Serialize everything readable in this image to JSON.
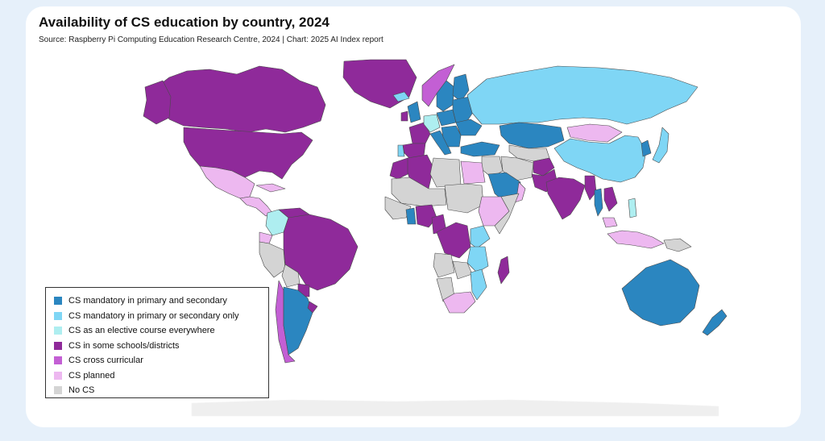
{
  "title": "Availability of CS education by country, 2024",
  "subtitle": "Source: Raspberry Pi Computing Education Research Centre, 2024 | Chart: 2025 AI Index report",
  "legend": [
    {
      "label": "CS mandatory in primary and secondary",
      "color": "#2b86c0"
    },
    {
      "label": "CS mandatory in primary or secondary only",
      "color": "#7fd6f5"
    },
    {
      "label": "CS as an elective course everywhere",
      "color": "#aeeef0"
    },
    {
      "label": "CS in some schools/districts",
      "color": "#8f2a9a"
    },
    {
      "label": "CS cross curricular",
      "color": "#c35fd4"
    },
    {
      "label": "CS planned",
      "color": "#edb8f0"
    },
    {
      "label": "No CS",
      "color": "#d4d4d4"
    }
  ],
  "regions": [
    {
      "name": "Canada",
      "status": 3
    },
    {
      "name": "United States",
      "status": 3
    },
    {
      "name": "Alaska",
      "status": 3
    },
    {
      "name": "Greenland",
      "status": 3
    },
    {
      "name": "Mexico",
      "status": 5
    },
    {
      "name": "Central America",
      "status": 5
    },
    {
      "name": "Cuba",
      "status": 5
    },
    {
      "name": "Colombia",
      "status": 2
    },
    {
      "name": "Venezuela",
      "status": 3
    },
    {
      "name": "Ecuador",
      "status": 5
    },
    {
      "name": "Peru",
      "status": 6
    },
    {
      "name": "Brazil",
      "status": 3
    },
    {
      "name": "Bolivia",
      "status": 6
    },
    {
      "name": "Paraguay",
      "status": 3
    },
    {
      "name": "Chile",
      "status": 4
    },
    {
      "name": "Argentina",
      "status": 0
    },
    {
      "name": "Uruguay",
      "status": 3
    },
    {
      "name": "Iceland",
      "status": 1
    },
    {
      "name": "United Kingdom",
      "status": 0
    },
    {
      "name": "Ireland",
      "status": 3
    },
    {
      "name": "Norway",
      "status": 4
    },
    {
      "name": "Sweden",
      "status": 0
    },
    {
      "name": "Finland",
      "status": 0
    },
    {
      "name": "France",
      "status": 3
    },
    {
      "name": "Spain",
      "status": 3
    },
    {
      "name": "Portugal",
      "status": 1
    },
    {
      "name": "Germany",
      "status": 2
    },
    {
      "name": "Italy",
      "status": 0
    },
    {
      "name": "Poland",
      "status": 0
    },
    {
      "name": "Eastern Europe",
      "status": 0
    },
    {
      "name": "Ukraine",
      "status": 0
    },
    {
      "name": "Balkans",
      "status": 0
    },
    {
      "name": "Turkey",
      "status": 0
    },
    {
      "name": "Russia",
      "status": 1
    },
    {
      "name": "Kazakhstan",
      "status": 0
    },
    {
      "name": "Mongolia",
      "status": 5
    },
    {
      "name": "China",
      "status": 1
    },
    {
      "name": "Japan",
      "status": 1
    },
    {
      "name": "Korea",
      "status": 0
    },
    {
      "name": "Central Asia",
      "status": 6
    },
    {
      "name": "Iran",
      "status": 6
    },
    {
      "name": "Afghanistan",
      "status": 3
    },
    {
      "name": "Pakistan",
      "status": 3
    },
    {
      "name": "India",
      "status": 3
    },
    {
      "name": "Myanmar",
      "status": 3
    },
    {
      "name": "Thailand",
      "status": 0
    },
    {
      "name": "Vietnam",
      "status": 3
    },
    {
      "name": "Philippines",
      "status": 2
    },
    {
      "name": "Indonesia",
      "status": 5
    },
    {
      "name": "Malaysia",
      "status": 5
    },
    {
      "name": "Papua New Guinea",
      "status": 6
    },
    {
      "name": "Australia",
      "status": 0
    },
    {
      "name": "New Zealand",
      "status": 0
    },
    {
      "name": "Saudi Arabia",
      "status": 0
    },
    {
      "name": "Arabian Gulf",
      "status": 5
    },
    {
      "name": "Iraq & Syria",
      "status": 6
    },
    {
      "name": "Egypt",
      "status": 5
    },
    {
      "name": "Morocco",
      "status": 3
    },
    {
      "name": "Algeria",
      "status": 3
    },
    {
      "name": "Libya",
      "status": 6
    },
    {
      "name": "Mali & Niger",
      "status": 6
    },
    {
      "name": "Sudan",
      "status": 6
    },
    {
      "name": "Ethiopia",
      "status": 5
    },
    {
      "name": "Somalia",
      "status": 6
    },
    {
      "name": "West Africa",
      "status": 6
    },
    {
      "name": "Nigeria",
      "status": 3
    },
    {
      "name": "Ghana",
      "status": 0
    },
    {
      "name": "Cameroon",
      "status": 3
    },
    {
      "name": "DR Congo",
      "status": 3
    },
    {
      "name": "Kenya",
      "status": 1
    },
    {
      "name": "Tanzania",
      "status": 1
    },
    {
      "name": "Angola",
      "status": 6
    },
    {
      "name": "Zambia",
      "status": 6
    },
    {
      "name": "Namibia",
      "status": 6
    },
    {
      "name": "South Africa",
      "status": 5
    },
    {
      "name": "Mozambique",
      "status": 1
    },
    {
      "name": "Madagascar",
      "status": 3
    },
    {
      "name": "Antarctica",
      "status": 6
    }
  ]
}
